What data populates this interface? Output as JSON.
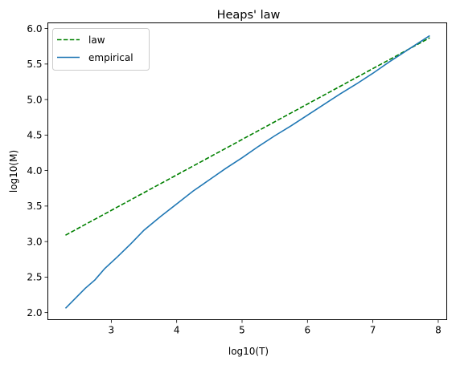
{
  "chart_data": {
    "type": "line",
    "title": "Heaps' law",
    "xlabel": "log10(T)",
    "ylabel": "log10(M)",
    "xlim": [
      2.03,
      8.13
    ],
    "ylim": [
      1.9,
      6.08
    ],
    "xticks": [
      3,
      4,
      5,
      6,
      7,
      8
    ],
    "yticks": [
      2.0,
      2.5,
      3.0,
      3.5,
      4.0,
      4.5,
      5.0,
      5.5,
      6.0
    ],
    "xtick_labels": [
      "3",
      "4",
      "5",
      "6",
      "7",
      "8"
    ],
    "ytick_labels": [
      "2.0",
      "2.5",
      "3.0",
      "3.5",
      "4.0",
      "4.5",
      "5.0",
      "5.5",
      "6.0"
    ],
    "grid": false,
    "legend_position": "top-left",
    "series": [
      {
        "name": "law",
        "color": "#008000",
        "style": "dashed",
        "x": [
          2.3,
          7.87
        ],
        "y": [
          3.09,
          5.87
        ]
      },
      {
        "name": "empirical",
        "color": "#1f77b4",
        "style": "solid",
        "x": [
          2.3,
          2.45,
          2.6,
          2.75,
          2.9,
          3.1,
          3.3,
          3.5,
          3.75,
          4.0,
          4.25,
          4.5,
          4.75,
          5.0,
          5.25,
          5.5,
          5.75,
          6.0,
          6.25,
          6.5,
          6.75,
          7.0,
          7.25,
          7.5,
          7.87
        ],
        "y": [
          2.06,
          2.2,
          2.34,
          2.46,
          2.62,
          2.79,
          2.97,
          3.16,
          3.35,
          3.53,
          3.71,
          3.87,
          4.03,
          4.18,
          4.34,
          4.49,
          4.63,
          4.78,
          4.93,
          5.08,
          5.22,
          5.37,
          5.53,
          5.68,
          5.9
        ]
      }
    ]
  }
}
